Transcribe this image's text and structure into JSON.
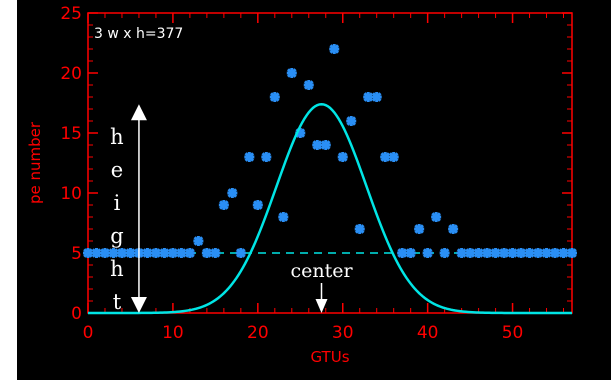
{
  "colors": {
    "background": "#000000",
    "axis": "#ff0000",
    "points": "#2a8ff5",
    "fit_curve": "#00e5e5",
    "baseline": "#00e5e5",
    "annotation": "#ffffff"
  },
  "chart_data": {
    "type": "scatter",
    "title": "",
    "xlabel": "GTUs",
    "ylabel": "pe number",
    "xlim": [
      0,
      57
    ],
    "ylim": [
      0,
      25
    ],
    "x_ticks": [
      0,
      10,
      20,
      30,
      40,
      50
    ],
    "y_ticks": [
      0,
      5,
      10,
      15,
      20,
      25
    ],
    "x_tick_labels": [
      "0",
      "10",
      "20",
      "30",
      "40",
      "50"
    ],
    "y_tick_labels": [
      "0",
      "5",
      "10",
      "15",
      "20",
      "25"
    ],
    "grid": false,
    "annotation_text": "3 w x h=377",
    "height_label_letters": [
      "h",
      "e",
      "i",
      "g",
      "h",
      "t"
    ],
    "center_label": "center",
    "points": {
      "x": [
        0,
        1,
        2,
        3,
        4,
        5,
        6,
        7,
        8,
        9,
        10,
        11,
        12,
        13,
        14,
        15,
        16,
        17,
        18,
        19,
        20,
        21,
        22,
        23,
        24,
        25,
        26,
        27,
        28,
        29,
        30,
        31,
        32,
        33,
        34,
        35,
        36,
        37,
        38,
        39,
        40,
        41,
        42,
        43,
        44,
        45,
        46,
        47,
        48,
        49,
        50,
        51,
        52,
        53,
        54,
        55,
        56,
        57
      ],
      "y": [
        5,
        5,
        5,
        5,
        5,
        5,
        5,
        5,
        5,
        5,
        5,
        5,
        5,
        6,
        5,
        5,
        9,
        10,
        5,
        13,
        9,
        13,
        18,
        8,
        20,
        15,
        19,
        14,
        14,
        22,
        13,
        16,
        7,
        18,
        18,
        13,
        13,
        5,
        5,
        7,
        5,
        8,
        5,
        7,
        5,
        5,
        5,
        5,
        5,
        5,
        5,
        5,
        5,
        5,
        5,
        5,
        5,
        5
      ]
    },
    "fit": {
      "type": "gaussian",
      "baseline": 0,
      "amplitude": 17.4,
      "center": 27.5,
      "sigma": 5.3
    },
    "baseline_level": 5,
    "height_arrow": {
      "x": 6,
      "y_from": 0,
      "y_to": 17.4
    },
    "center_arrow": {
      "x": 27.5,
      "y_from": 2.5,
      "y_to": 0
    }
  }
}
